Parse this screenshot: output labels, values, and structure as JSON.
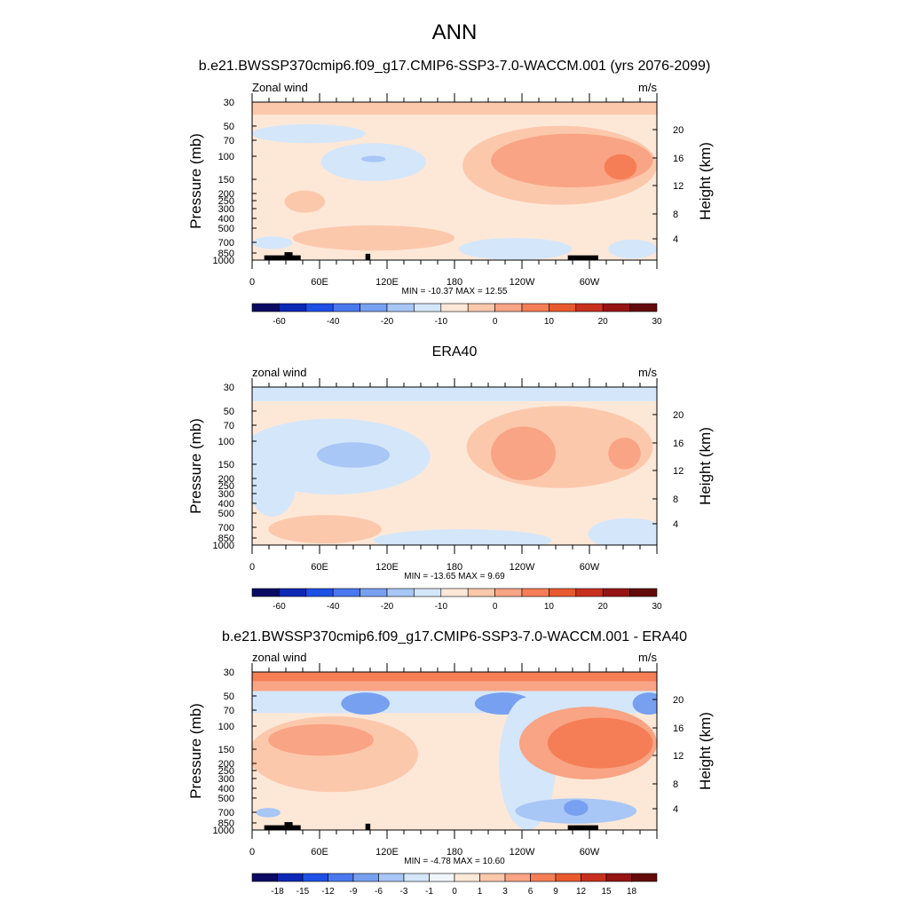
{
  "figure": {
    "title": "ANN"
  },
  "colorbar_colors_abs": [
    "#0a0a64",
    "#0d28b4",
    "#1e50e6",
    "#4a78ee",
    "#78a0f0",
    "#a8c6f6",
    "#d4e6fa",
    "#fde8d8",
    "#fcc8ac",
    "#f9a484",
    "#f57e56",
    "#e85a2e",
    "#c8301e",
    "#961414",
    "#640a0a"
  ],
  "colorbar_colors_diff": [
    "#0a0a64",
    "#0d28b4",
    "#1e50e6",
    "#4a78ee",
    "#78a0f0",
    "#a8c6f6",
    "#d4e6fa",
    "#f2f6fa",
    "#fde8d8",
    "#fcc8ac",
    "#f9a484",
    "#f57e56",
    "#e85a2e",
    "#c8301e",
    "#961414",
    "#640a0a"
  ],
  "chart_data": [
    {
      "type": "heatmap",
      "title": "b.e21.BWSSP370cmip6.f09_g17.CMIP6-SSP3-7.0-WACCM.001 (yrs 2076-2099)",
      "left_label": "Zonal wind",
      "units": "m/s",
      "ylabel": "Pressure (mb)",
      "y2label": "Height (km)",
      "yticks": [
        "30",
        "50",
        "70",
        "100",
        "150",
        "200",
        "250",
        "300",
        "400",
        "500",
        "700",
        "850",
        "1000"
      ],
      "y2ticks": [
        "20",
        "16",
        "12",
        "8",
        "4"
      ],
      "xticks": [
        "0",
        "60E",
        "120E",
        "180",
        "120W",
        "60W"
      ],
      "stats": "MIN = -10.37  MAX =  12.55",
      "colorbar_labels": [
        "-60",
        "-40",
        "-20",
        "-10",
        "0",
        "10",
        "20",
        "30"
      ],
      "min": -10.37,
      "max": 12.55
    },
    {
      "type": "heatmap",
      "title": "ERA40",
      "left_label": "zonal wind",
      "units": "m/s",
      "ylabel": "Pressure (mb)",
      "y2label": "Height (km)",
      "yticks": [
        "30",
        "50",
        "70",
        "100",
        "150",
        "200",
        "250",
        "300",
        "400",
        "500",
        "700",
        "850",
        "1000"
      ],
      "y2ticks": [
        "20",
        "16",
        "12",
        "8",
        "4"
      ],
      "xticks": [
        "0",
        "60E",
        "120E",
        "180",
        "120W",
        "60W"
      ],
      "stats": "MIN = -13.65  MAX =   9.69",
      "colorbar_labels": [
        "-60",
        "-40",
        "-20",
        "-10",
        "0",
        "10",
        "20",
        "30"
      ],
      "min": -13.65,
      "max": 9.69
    },
    {
      "type": "heatmap",
      "title": "b.e21.BWSSP370cmip6.f09_g17.CMIP6-SSP3-7.0-WACCM.001 - ERA40",
      "left_label": "zonal wind",
      "units": "m/s",
      "ylabel": "Pressure (mb)",
      "y2label": "Height (km)",
      "yticks": [
        "30",
        "50",
        "70",
        "100",
        "150",
        "200",
        "250",
        "300",
        "400",
        "500",
        "700",
        "850",
        "1000"
      ],
      "y2ticks": [
        "20",
        "16",
        "12",
        "8",
        "4"
      ],
      "xticks": [
        "0",
        "60E",
        "120E",
        "180",
        "120W",
        "60W"
      ],
      "stats": "MIN =  -4.78  MAX =  10.60",
      "colorbar_labels": [
        "-18",
        "-15",
        "-12",
        "-9",
        "-6",
        "-3",
        "-1",
        "0",
        "1",
        "3",
        "6",
        "9",
        "12",
        "15",
        "18"
      ],
      "min": -4.78,
      "max": 10.6
    }
  ]
}
